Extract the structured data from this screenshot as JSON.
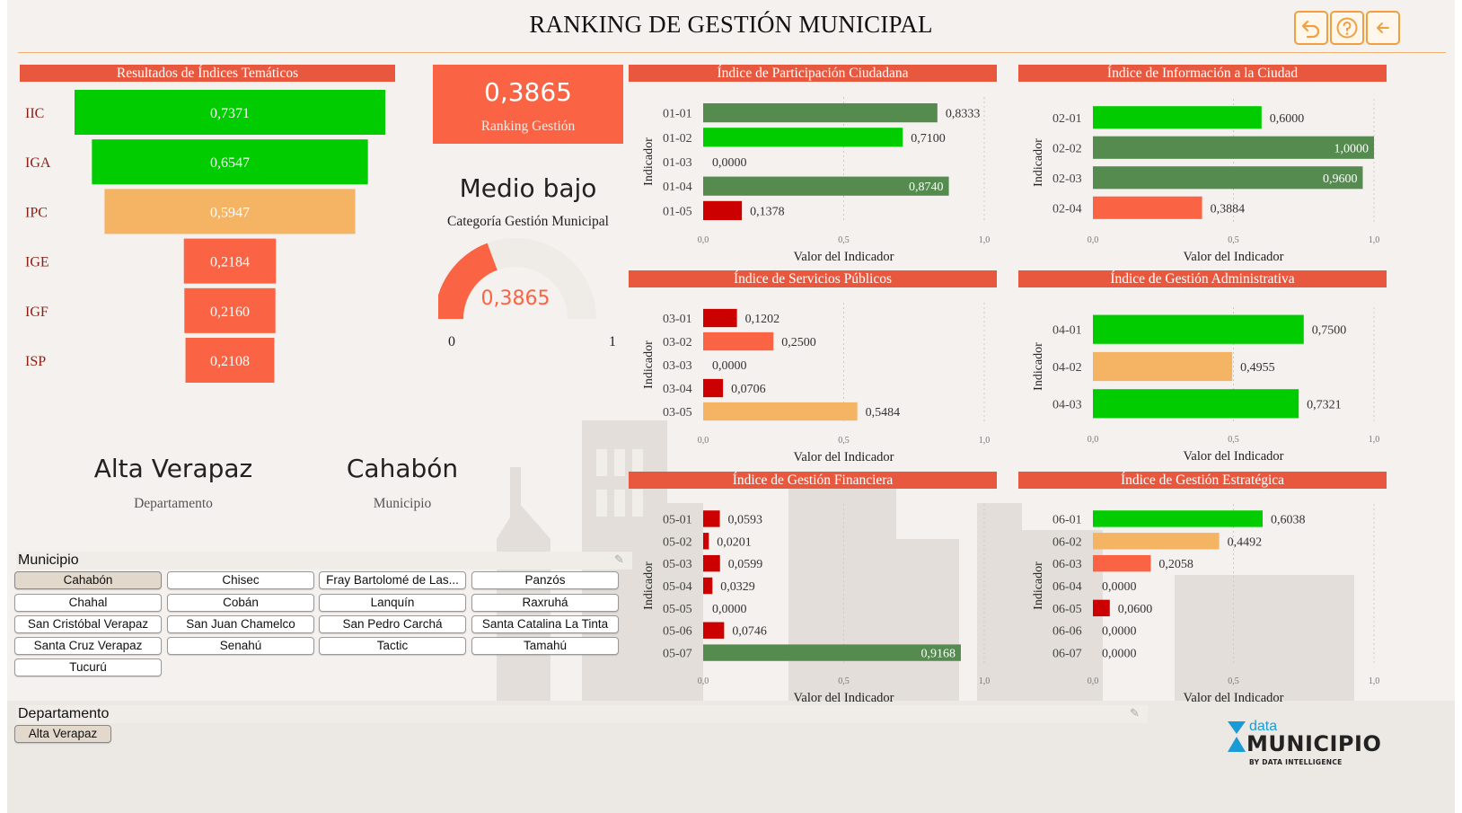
{
  "page_title": "RANKING DE GESTIÓN MUNICIPAL",
  "nav": {
    "icons": [
      "undo-icon",
      "help-icon",
      "back-arrow-icon"
    ],
    "accent": "#f0a040"
  },
  "colors": {
    "panel_header": "#e8583f",
    "green": "#00cc00",
    "dark_green": "#558b4f",
    "light_orange": "#f4b463",
    "orange_red": "#fa6343",
    "red": "#cc0000",
    "kpi_bg": "#fa6343"
  },
  "ranking_score": {
    "value": "0,3865",
    "label": "Ranking Gestión"
  },
  "category": {
    "value": "Medio bajo",
    "label": "Categoría Gestión Municipal"
  },
  "gauge": {
    "value": 0.3865,
    "value_label": "0,3865",
    "min_label": "0",
    "max_label": "1"
  },
  "location": {
    "department": {
      "name": "Alta Verapaz",
      "label": "Departamento"
    },
    "municipality": {
      "name": "Cahabón",
      "label": "Municipio"
    }
  },
  "municipio_slicer": {
    "title": "Municipio",
    "items": [
      {
        "label": "Cahabón",
        "selected": true
      },
      {
        "label": "Chisec",
        "selected": false
      },
      {
        "label": "Fray Bartolomé de Las...",
        "selected": false
      },
      {
        "label": "Panzós",
        "selected": false
      },
      {
        "label": "Chahal",
        "selected": false
      },
      {
        "label": "Cobán",
        "selected": false
      },
      {
        "label": "Lanquín",
        "selected": false
      },
      {
        "label": "Raxruhá",
        "selected": false
      },
      {
        "label": "San Cristóbal Verapaz",
        "selected": false
      },
      {
        "label": "San Juan Chamelco",
        "selected": false
      },
      {
        "label": "San Pedro Carchá",
        "selected": false
      },
      {
        "label": "Santa Catalina La Tinta",
        "selected": false
      },
      {
        "label": "Santa Cruz Verapaz",
        "selected": false
      },
      {
        "label": "Senahú",
        "selected": false
      },
      {
        "label": "Tactic",
        "selected": false
      },
      {
        "label": "Tamahú",
        "selected": false
      },
      {
        "label": "Tucurú",
        "selected": false
      }
    ]
  },
  "departamento_slicer": {
    "title": "Departamento",
    "items": [
      {
        "label": "Alta Verapaz",
        "selected": true
      }
    ]
  },
  "logo": {
    "top": "data",
    "main": "MUNICIPIO",
    "sub": "BY DATA INTELLIGENCE"
  },
  "chart_data": [
    {
      "type": "bar",
      "title": "Resultados de Índices Temáticos",
      "orientation": "horizontal-funnel",
      "categories": [
        "IIC",
        "IGA",
        "IPC",
        "IGE",
        "IGF",
        "ISP"
      ],
      "values": [
        0.7371,
        0.6547,
        0.5947,
        0.2184,
        0.216,
        0.2108
      ],
      "value_labels": [
        "0,7371",
        "0,6547",
        "0,5947",
        "0,2184",
        "0,2160",
        "0,2108"
      ],
      "colors": [
        "#00cc00",
        "#00cc00",
        "#f4b463",
        "#fa6343",
        "#fa6343",
        "#fa6343"
      ]
    },
    {
      "type": "bar",
      "orientation": "horizontal",
      "title": "Índice de Participación Ciudadana",
      "categories": [
        "01-01",
        "01-02",
        "01-03",
        "01-04",
        "01-05"
      ],
      "values": [
        0.8333,
        0.71,
        0.0,
        0.874,
        0.1378
      ],
      "value_labels": [
        "0,8333",
        "0,7100",
        "0,0000",
        "0,8740",
        "0,1378"
      ],
      "colors": [
        "#558b4f",
        "#00cc00",
        "#cc0000",
        "#558b4f",
        "#cc0000"
      ],
      "xlabel": "Valor del Indicador",
      "ylabel": "Indicador",
      "xlim": [
        0,
        1
      ],
      "xticks": [
        "0,0",
        "0,5",
        "1,0"
      ]
    },
    {
      "type": "bar",
      "orientation": "horizontal",
      "title": "Índice de Información a la Ciudad",
      "categories": [
        "02-01",
        "02-02",
        "02-03",
        "02-04"
      ],
      "values": [
        0.6,
        1.0,
        0.96,
        0.3884
      ],
      "value_labels": [
        "0,6000",
        "1,0000",
        "0,9600",
        "0,3884"
      ],
      "colors": [
        "#00cc00",
        "#558b4f",
        "#558b4f",
        "#fa6343"
      ],
      "xlabel": "Valor del Indicador",
      "ylabel": "Indicador",
      "xlim": [
        0,
        1
      ],
      "xticks": [
        "0,0",
        "0,5",
        "1,0"
      ]
    },
    {
      "type": "bar",
      "orientation": "horizontal",
      "title": "Índice de Servicios Públicos",
      "categories": [
        "03-01",
        "03-02",
        "03-03",
        "03-04",
        "03-05"
      ],
      "values": [
        0.1202,
        0.25,
        0.0,
        0.0706,
        0.5484
      ],
      "value_labels": [
        "0,1202",
        "0,2500",
        "0,0000",
        "0,0706",
        "0,5484"
      ],
      "colors": [
        "#cc0000",
        "#fa6343",
        "#cc0000",
        "#cc0000",
        "#f4b463"
      ],
      "xlabel": "Valor del Indicador",
      "ylabel": "Indicador",
      "xlim": [
        0,
        1
      ],
      "xticks": [
        "0,0",
        "0,5",
        "1,0"
      ]
    },
    {
      "type": "bar",
      "orientation": "horizontal",
      "title": "Índice de Gestión Administrativa",
      "categories": [
        "04-01",
        "04-02",
        "04-03"
      ],
      "values": [
        0.75,
        0.4955,
        0.7321
      ],
      "value_labels": [
        "0,7500",
        "0,4955",
        "0,7321"
      ],
      "colors": [
        "#00cc00",
        "#f4b463",
        "#00cc00"
      ],
      "xlabel": "Valor del Indicador",
      "ylabel": "Indicador",
      "xlim": [
        0,
        1
      ],
      "xticks": [
        "0,0",
        "0,5",
        "1,0"
      ]
    },
    {
      "type": "bar",
      "orientation": "horizontal",
      "title": "Índice de Gestión Financiera",
      "categories": [
        "05-01",
        "05-02",
        "05-03",
        "05-04",
        "05-05",
        "05-06",
        "05-07"
      ],
      "values": [
        0.0593,
        0.0201,
        0.0599,
        0.0329,
        0.0,
        0.0746,
        0.9168
      ],
      "value_labels": [
        "0,0593",
        "0,0201",
        "0,0599",
        "0,0329",
        "0,0000",
        "0,0746",
        "0,9168"
      ],
      "colors": [
        "#cc0000",
        "#cc0000",
        "#cc0000",
        "#cc0000",
        "#cc0000",
        "#cc0000",
        "#558b4f"
      ],
      "xlabel": "Valor del Indicador",
      "ylabel": "Indicador",
      "xlim": [
        0,
        1
      ],
      "xticks": [
        "0,0",
        "0,5",
        "1,0"
      ]
    },
    {
      "type": "bar",
      "orientation": "horizontal",
      "title": "Índice de Gestión Estratégica",
      "categories": [
        "06-01",
        "06-02",
        "06-03",
        "06-04",
        "06-05",
        "06-06",
        "06-07"
      ],
      "values": [
        0.6038,
        0.4492,
        0.2058,
        0.0,
        0.06,
        0.0,
        0.0
      ],
      "value_labels": [
        "0,6038",
        "0,4492",
        "0,2058",
        "0,0000",
        "0,0600",
        "0,0000",
        "0,0000"
      ],
      "colors": [
        "#00cc00",
        "#f4b463",
        "#fa6343",
        "#cc0000",
        "#cc0000",
        "#cc0000",
        "#cc0000"
      ],
      "xlabel": "Valor del Indicador",
      "ylabel": "Indicador",
      "xlim": [
        0,
        1
      ],
      "xticks": [
        "0,0",
        "0,5",
        "1,0"
      ]
    }
  ]
}
